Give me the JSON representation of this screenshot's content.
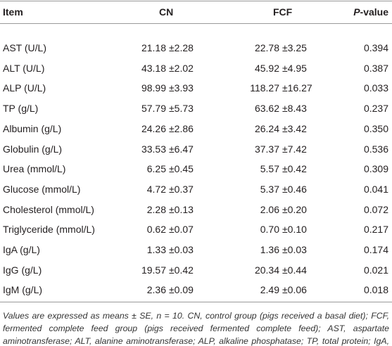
{
  "table": {
    "header": [
      "Item",
      "CN",
      "FCF",
      "P-value"
    ],
    "rows": [
      [
        "AST (U/L)",
        "21.18",
        "±2.28",
        "22.78",
        "±3.25",
        "0.394"
      ],
      [
        "ALT (U/L)",
        "43.18",
        "±2.02",
        "45.92",
        "±4.95",
        "0.387"
      ],
      [
        "ALP (U/L)",
        "98.99",
        "±3.93",
        "118.27",
        "±16.27",
        "0.033"
      ],
      [
        "TP (g/L)",
        "57.79",
        "±5.73",
        "63.62",
        "±8.43",
        "0.237"
      ],
      [
        "Albumin (g/L)",
        "24.26",
        "±2.86",
        "26.24",
        "±3.42",
        "0.350"
      ],
      [
        "Globulin (g/L)",
        "33.53",
        "±6.47",
        "37.37",
        "±7.42",
        "0.536"
      ],
      [
        "Urea (mmol/L)",
        "6.25",
        "±0.45",
        "5.57",
        "±0.42",
        "0.309"
      ],
      [
        "Glucose (mmol/L)",
        "4.72",
        "±0.37",
        "5.37",
        "±0.46",
        "0.041"
      ],
      [
        "Cholesterol (mmol/L)",
        "2.28",
        "±0.13",
        "2.06",
        "±0.20",
        "0.072"
      ],
      [
        "Triglyceride (mmol/L)",
        "0.62",
        "±0.07",
        "0.70",
        "±0.10",
        "0.217"
      ],
      [
        "IgA (g/L)",
        "1.33",
        "±0.03",
        "1.36",
        "±0.03",
        "0.174"
      ],
      [
        "IgG (g/L)",
        "19.57",
        "±0.42",
        "20.34",
        "±0.44",
        "0.021"
      ],
      [
        "IgM (g/L)",
        "2.36",
        "±0.09",
        "2.49",
        "±0.06",
        "0.018"
      ]
    ],
    "footnote": "Values are expressed as means ± SE, n = 10. CN, control group (pigs received a basal diet); FCF, fermented complete feed group (pigs received fermented complete feed); AST, aspartate aminotransferase; ALT, alanine aminotransferase; ALP, alkaline phosphatase; TP, total protein; IgA, immunoglobulin A; IgG, immunoglobulin G; IgM, immunoglobulin M."
  }
}
